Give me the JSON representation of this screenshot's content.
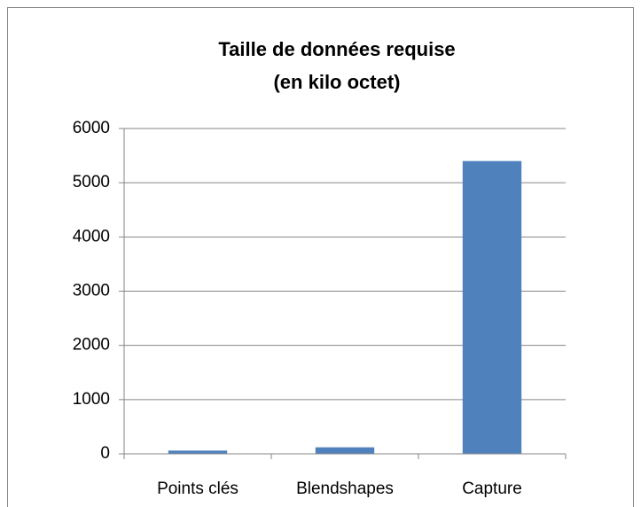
{
  "chart_data": {
    "type": "bar",
    "title": [
      "Taille de données requise",
      "(en kilo octet)"
    ],
    "categories": [
      "Points clés",
      "Blendshapes",
      "Capture"
    ],
    "values": [
      60,
      120,
      5400
    ],
    "color": "#4f81bd",
    "ylim": [
      0,
      6000
    ],
    "yticks": [
      0,
      1000,
      2000,
      3000,
      4000,
      5000,
      6000
    ],
    "grid": true
  }
}
